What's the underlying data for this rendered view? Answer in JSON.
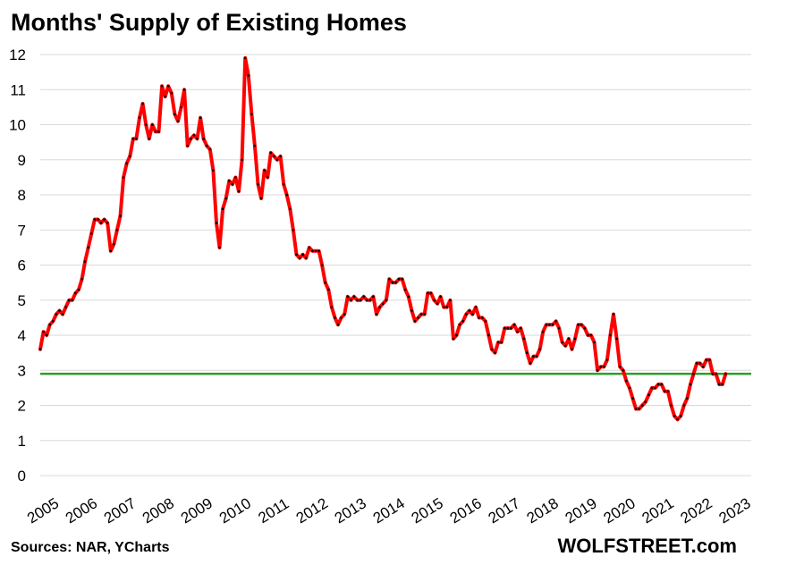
{
  "chart_data": {
    "type": "line",
    "title": "Months' Supply of Existing Homes",
    "source": "Sources: NAR, YCharts",
    "watermark": "WOLFSTREET.com",
    "xlabel": "",
    "ylabel": "",
    "ylim": [
      0,
      12
    ],
    "y_ticks": [
      "0",
      "1",
      "2",
      "3",
      "4",
      "5",
      "6",
      "7",
      "8",
      "9",
      "10",
      "11",
      "12"
    ],
    "x_ticks": [
      "2005",
      "2006",
      "2007",
      "2008",
      "2009",
      "2010",
      "2011",
      "2012",
      "2013",
      "2014",
      "2015",
      "2016",
      "2017",
      "2018",
      "2019",
      "2020",
      "2021",
      "2022",
      "2023"
    ],
    "grid": true,
    "reference_line": {
      "value": 2.9,
      "color": "#2ca02c"
    },
    "series": [
      {
        "color": "#ff0000",
        "marker_color": "#000000",
        "start": "2005-01",
        "frequency": "monthly",
        "values": [
          3.6,
          4.1,
          4.0,
          4.3,
          4.4,
          4.6,
          4.7,
          4.6,
          4.8,
          5.0,
          5.0,
          5.2,
          5.3,
          5.6,
          6.1,
          6.5,
          6.9,
          7.3,
          7.3,
          7.2,
          7.3,
          7.2,
          6.4,
          6.6,
          7.0,
          7.4,
          8.5,
          8.9,
          9.1,
          9.6,
          9.6,
          10.2,
          10.6,
          10.0,
          9.6,
          10.0,
          9.8,
          9.8,
          11.1,
          10.8,
          11.1,
          10.9,
          10.3,
          10.1,
          10.5,
          11.0,
          9.4,
          9.6,
          9.7,
          9.6,
          10.2,
          9.6,
          9.4,
          9.3,
          8.7,
          7.2,
          6.5,
          7.6,
          7.9,
          8.4,
          8.3,
          8.5,
          8.1,
          9.0,
          11.9,
          11.4,
          10.3,
          9.4,
          8.3,
          7.9,
          8.7,
          8.5,
          9.2,
          9.1,
          9.0,
          9.1,
          8.3,
          8.0,
          7.6,
          7.0,
          6.3,
          6.2,
          6.3,
          6.2,
          6.5,
          6.4,
          6.4,
          6.4,
          6.0,
          5.5,
          5.3,
          4.8,
          4.5,
          4.3,
          4.5,
          4.6,
          5.1,
          5.0,
          5.1,
          5.0,
          5.0,
          5.1,
          5.0,
          5.0,
          5.1,
          4.6,
          4.8,
          4.9,
          5.0,
          5.6,
          5.5,
          5.5,
          5.6,
          5.6,
          5.3,
          5.1,
          4.7,
          4.4,
          4.5,
          4.6,
          4.6,
          5.2,
          5.2,
          5.0,
          4.9,
          5.1,
          4.8,
          4.8,
          5.0,
          3.9,
          4.0,
          4.3,
          4.4,
          4.6,
          4.7,
          4.6,
          4.8,
          4.5,
          4.5,
          4.4,
          4.0,
          3.6,
          3.5,
          3.8,
          3.8,
          4.2,
          4.2,
          4.2,
          4.3,
          4.1,
          4.2,
          3.9,
          3.5,
          3.2,
          3.4,
          3.4,
          3.6,
          4.1,
          4.3,
          4.3,
          4.3,
          4.4,
          4.2,
          3.8,
          3.7,
          3.9,
          3.6,
          3.9,
          4.3,
          4.3,
          4.2,
          4.0,
          4.0,
          3.8,
          3.0,
          3.1,
          3.1,
          3.3,
          4.0,
          4.6,
          3.9,
          3.1,
          3.0,
          2.7,
          2.5,
          2.2,
          1.9,
          1.9,
          2.0,
          2.1,
          2.3,
          2.5,
          2.5,
          2.6,
          2.6,
          2.4,
          2.4,
          2.0,
          1.7,
          1.6,
          1.7,
          2.0,
          2.2,
          2.6,
          2.9,
          3.2,
          3.2,
          3.1,
          3.3,
          3.3,
          2.9,
          2.9,
          2.6,
          2.6,
          2.9
        ]
      }
    ]
  }
}
